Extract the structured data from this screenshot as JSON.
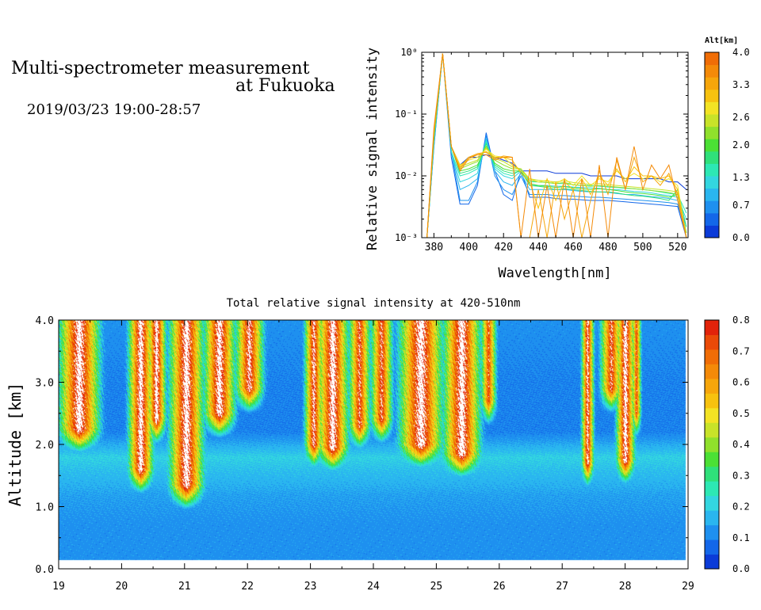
{
  "header": {
    "title_line1": "Multi-spectrometer measurement",
    "title_line2": "at Fukuoka",
    "datetime": "2019/03/23 19:00-28:57"
  },
  "chart_data": [
    {
      "type": "line",
      "xlabel": "Wavelength[nm]",
      "ylabel": "Relative signal intensity",
      "xlim": [
        373,
        526
      ],
      "ylim": [
        0.001,
        1
      ],
      "yscale": "log",
      "x_ticks": [
        380,
        400,
        420,
        440,
        460,
        480,
        500,
        520
      ],
      "y_ticks": [
        {
          "value": 1,
          "label": "10⁰"
        },
        {
          "value": 0.1,
          "label": "10⁻¹"
        },
        {
          "value": 0.01,
          "label": "10⁻²"
        },
        {
          "value": 0.001,
          "label": "10⁻³"
        }
      ],
      "colorbar": {
        "title": "Alt[km]",
        "min": 0.0,
        "max": 4.0,
        "tick_values": [
          0.0,
          0.7,
          1.3,
          2.0,
          2.6,
          3.3,
          4.0
        ],
        "tick_labels": [
          "0.0",
          "0.7",
          "1.3",
          "2.0",
          "2.6",
          "3.3",
          "4.0"
        ],
        "colors": [
          "#0b3bd8",
          "#1367e9",
          "#1e90ef",
          "#2ab6ef",
          "#33d6e0",
          "#2de8b4",
          "#2fe07a",
          "#4be035",
          "#90e02c",
          "#c8e329",
          "#f3e324",
          "#f7c20f",
          "#f6a60b",
          "#f48a08",
          "#f06d06"
        ]
      },
      "x": [
        374,
        376,
        380,
        385,
        390,
        395,
        400,
        405,
        410,
        415,
        420,
        425,
        430,
        435,
        440,
        445,
        450,
        455,
        460,
        465,
        470,
        475,
        480,
        485,
        490,
        495,
        500,
        505,
        510,
        515,
        520,
        525
      ],
      "series": [
        {
          "altitude_km": 0.1,
          "color": "#0b3bd8",
          "values": [
            0.001,
            0.001,
            0.04,
            0.95,
            0.03,
            0.015,
            0.02,
            0.02,
            0.022,
            0.02,
            0.018,
            0.016,
            0.012,
            0.012,
            0.012,
            0.012,
            0.011,
            0.011,
            0.011,
            0.011,
            0.01,
            0.01,
            0.01,
            0.01,
            0.009,
            0.009,
            0.009,
            0.009,
            0.009,
            0.008,
            0.008,
            0.006
          ]
        },
        {
          "altitude_km": 0.3,
          "color": "#1367e9",
          "values": [
            0.001,
            0.001,
            0.03,
            0.95,
            0.02,
            0.0035,
            0.0035,
            0.007,
            0.05,
            0.012,
            0.005,
            0.004,
            0.012,
            0.0045,
            0.0045,
            0.0045,
            0.0043,
            0.0042,
            0.0042,
            0.0041,
            0.004,
            0.004,
            0.004,
            0.0039,
            0.0038,
            0.0037,
            0.0036,
            0.0035,
            0.0034,
            0.0033,
            0.0032,
            0.001
          ]
        },
        {
          "altitude_km": 0.6,
          "color": "#1e90ef",
          "values": [
            0.001,
            0.001,
            0.03,
            0.95,
            0.025,
            0.004,
            0.004,
            0.008,
            0.045,
            0.01,
            0.006,
            0.005,
            0.01,
            0.005,
            0.005,
            0.005,
            0.0048,
            0.0048,
            0.0047,
            0.0046,
            0.0045,
            0.0045,
            0.0044,
            0.0043,
            0.0042,
            0.0041,
            0.004,
            0.0039,
            0.0038,
            0.0037,
            0.0035,
            0.0012
          ]
        },
        {
          "altitude_km": 0.9,
          "color": "#2ab6ef",
          "values": [
            0.001,
            0.001,
            0.035,
            0.95,
            0.025,
            0.006,
            0.007,
            0.009,
            0.04,
            0.012,
            0.008,
            0.007,
            0.011,
            0.006,
            0.006,
            0.006,
            0.006,
            0.006,
            0.0058,
            0.0056,
            0.0055,
            0.0055,
            0.0054,
            0.0052,
            0.005,
            0.005,
            0.0048,
            0.0046,
            0.0045,
            0.0043,
            0.004,
            0.0015
          ]
        },
        {
          "altitude_km": 1.2,
          "color": "#33d6e0",
          "values": [
            0.001,
            0.001,
            0.035,
            0.95,
            0.025,
            0.008,
            0.009,
            0.011,
            0.038,
            0.013,
            0.01,
            0.009,
            0.012,
            0.007,
            0.007,
            0.007,
            0.0068,
            0.0068,
            0.0066,
            0.0065,
            0.0064,
            0.0063,
            0.006,
            0.006,
            0.0058,
            0.0056,
            0.0055,
            0.0053,
            0.005,
            0.0048,
            0.0045,
            0.002
          ]
        },
        {
          "altitude_km": 1.5,
          "color": "#2de8b4",
          "values": [
            0.001,
            0.001,
            0.04,
            0.95,
            0.025,
            0.01,
            0.011,
            0.013,
            0.035,
            0.014,
            0.011,
            0.01,
            0.013,
            0.008,
            0.008,
            0.0078,
            0.0075,
            0.0075,
            0.0072,
            0.007,
            0.007,
            0.0068,
            0.0066,
            0.0065,
            0.0063,
            0.0062,
            0.006,
            0.0058,
            0.0055,
            0.0052,
            0.005,
            0.0025
          ]
        },
        {
          "altitude_km": 1.8,
          "color": "#2fe07a",
          "values": [
            0.001,
            0.001,
            0.04,
            0.95,
            0.03,
            0.011,
            0.012,
            0.014,
            0.033,
            0.015,
            0.012,
            0.011,
            0.012,
            0.007,
            0.0068,
            0.0065,
            0.006,
            0.0062,
            0.006,
            0.0058,
            0.0056,
            0.0055,
            0.0055,
            0.0053,
            0.005,
            0.0048,
            0.0047,
            0.0045,
            0.0043,
            0.004,
            0.006,
            0.0015
          ]
        },
        {
          "altitude_km": 2.1,
          "color": "#4be035",
          "values": [
            0.001,
            0.001,
            0.045,
            0.95,
            0.03,
            0.012,
            0.013,
            0.015,
            0.03,
            0.016,
            0.013,
            0.012,
            0.012,
            0.0075,
            0.007,
            0.0068,
            0.0065,
            0.0067,
            0.0064,
            0.0062,
            0.006,
            0.0062,
            0.006,
            0.0058,
            0.0055,
            0.0053,
            0.0052,
            0.005,
            0.0048,
            0.0045,
            0.005,
            0.0012
          ]
        },
        {
          "altitude_km": 2.4,
          "color": "#90e02c",
          "values": [
            0.001,
            0.001,
            0.045,
            0.95,
            0.03,
            0.013,
            0.015,
            0.017,
            0.03,
            0.018,
            0.015,
            0.013,
            0.013,
            0.0085,
            0.008,
            0.0078,
            0.0075,
            0.0078,
            0.0072,
            0.007,
            0.0068,
            0.007,
            0.0068,
            0.0066,
            0.0064,
            0.0062,
            0.006,
            0.0058,
            0.0056,
            0.0054,
            0.005,
            0.0012
          ]
        },
        {
          "altitude_km": 2.7,
          "color": "#c8e329",
          "values": [
            0.001,
            0.001,
            0.05,
            0.95,
            0.03,
            0.014,
            0.016,
            0.018,
            0.028,
            0.019,
            0.017,
            0.014,
            0.013,
            0.009,
            0.0085,
            0.0082,
            0.008,
            0.0083,
            0.0078,
            0.0075,
            0.0073,
            0.0075,
            0.0072,
            0.007,
            0.0068,
            0.0066,
            0.0064,
            0.0062,
            0.006,
            0.0058,
            0.0055,
            0.001
          ]
        },
        {
          "altitude_km": 3.0,
          "color": "#f3e324",
          "values": [
            0.001,
            0.001,
            0.05,
            0.95,
            0.03,
            0.015,
            0.018,
            0.02,
            0.027,
            0.021,
            0.02,
            0.015,
            0.012,
            0.009,
            0.008,
            0.0085,
            0.0075,
            0.009,
            0.007,
            0.01,
            0.007,
            0.009,
            0.008,
            0.012,
            0.009,
            0.011,
            0.009,
            0.01,
            0.008,
            0.009,
            0.007,
            0.001
          ]
        },
        {
          "altitude_km": 3.3,
          "color": "#f7c20f",
          "values": [
            0.001,
            0.001,
            0.05,
            0.95,
            0.03,
            0.014,
            0.02,
            0.022,
            0.025,
            0.02,
            0.02,
            0.018,
            0.011,
            0.008,
            0.003,
            0.009,
            0.004,
            0.008,
            0.006,
            0.009,
            0.005,
            0.01,
            0.007,
            0.013,
            0.008,
            0.014,
            0.01,
            0.01,
            0.009,
            0.01,
            0.006,
            0.001
          ]
        },
        {
          "altitude_km": 3.6,
          "color": "#f6a60b",
          "values": [
            0.001,
            0.001,
            0.05,
            0.95,
            0.03,
            0.013,
            0.02,
            0.023,
            0.024,
            0.019,
            0.021,
            0.02,
            0.001,
            0.001,
            0.006,
            0.001,
            0.008,
            0.002,
            0.006,
            0.001,
            0.004,
            0.012,
            0.005,
            0.018,
            0.006,
            0.02,
            0.008,
            0.01,
            0.007,
            0.011,
            0.005,
            0.001
          ]
        },
        {
          "altitude_km": 3.9,
          "color": "#f48a08",
          "values": [
            0.001,
            0.001,
            0.06,
            0.95,
            0.03,
            0.012,
            0.019,
            0.022,
            0.022,
            0.018,
            0.02,
            0.02,
            0.001,
            0.013,
            0.001,
            0.007,
            0.001,
            0.009,
            0.001,
            0.009,
            0.001,
            0.015,
            0.001,
            0.02,
            0.006,
            0.03,
            0.006,
            0.015,
            0.009,
            0.015,
            0.004,
            0.001
          ]
        }
      ]
    },
    {
      "type": "heatmap",
      "title": "Total relative signal intensity at 420-510nm",
      "ylabel": "Altitude [km]",
      "xlabel": "",
      "xlim": [
        19,
        29
      ],
      "ylim": [
        0.0,
        4.0
      ],
      "x_ticks": [
        19,
        20,
        21,
        22,
        23,
        24,
        25,
        26,
        27,
        28,
        29
      ],
      "y_ticks": [
        0.0,
        1.0,
        2.0,
        3.0,
        4.0
      ],
      "y_tick_labels": [
        "0.0",
        "1.0",
        "2.0",
        "3.0",
        "4.0"
      ],
      "colorbar": {
        "min": 0.0,
        "max": 0.8,
        "tick_values": [
          0.0,
          0.1,
          0.2,
          0.3,
          0.4,
          0.5,
          0.6,
          0.7,
          0.8
        ],
        "tick_labels": [
          "0.0",
          "0.1",
          "0.2",
          "0.3",
          "0.4",
          "0.5",
          "0.6",
          "0.7",
          "0.8"
        ],
        "colors": [
          "#0b3bd8",
          "#1367e9",
          "#1e90ef",
          "#2ab6ef",
          "#33d6e0",
          "#2de8b4",
          "#2fe07a",
          "#4be035",
          "#90e02c",
          "#c8e329",
          "#f3e324",
          "#f7c20f",
          "#f6a60b",
          "#f48a08",
          "#f06d06",
          "#ea4a08",
          "#e2230a"
        ]
      },
      "data_extent": {
        "x_start": 19.0,
        "x_end": 28.95,
        "y_start": 0.15,
        "y_end": 4.0
      },
      "background_level": [
        {
          "alt_km": 0.15,
          "value": 0.12
        },
        {
          "alt_km": 0.7,
          "value": 0.12
        },
        {
          "alt_km": 1.2,
          "value": 0.14
        },
        {
          "alt_km": 1.8,
          "value": 0.2
        },
        {
          "alt_km": 2.2,
          "value": 0.1
        },
        {
          "alt_km": 3.0,
          "value": 0.1
        },
        {
          "alt_km": 4.0,
          "value": 0.12
        }
      ],
      "cloud_columns": [
        {
          "x0": 19.0,
          "x1": 19.65,
          "base_km": 2.15,
          "peak": 0.9
        },
        {
          "x0": 20.1,
          "x1": 20.5,
          "base_km": 1.5,
          "peak": 0.9
        },
        {
          "x0": 20.4,
          "x1": 20.7,
          "base_km": 2.3,
          "peak": 0.9
        },
        {
          "x0": 20.75,
          "x1": 21.3,
          "base_km": 1.25,
          "peak": 0.9
        },
        {
          "x0": 21.3,
          "x1": 21.8,
          "base_km": 2.4,
          "peak": 0.9
        },
        {
          "x0": 21.8,
          "x1": 22.25,
          "base_km": 2.8,
          "peak": 0.85
        },
        {
          "x0": 22.9,
          "x1": 23.2,
          "base_km": 1.9,
          "peak": 0.85
        },
        {
          "x0": 23.1,
          "x1": 23.6,
          "base_km": 1.85,
          "peak": 0.9
        },
        {
          "x0": 23.6,
          "x1": 23.95,
          "base_km": 2.2,
          "peak": 0.8
        },
        {
          "x0": 23.95,
          "x1": 24.3,
          "base_km": 2.3,
          "peak": 0.8
        },
        {
          "x0": 24.4,
          "x1": 25.1,
          "base_km": 1.9,
          "peak": 0.9
        },
        {
          "x0": 25.1,
          "x1": 25.7,
          "base_km": 1.75,
          "peak": 0.9
        },
        {
          "x0": 25.7,
          "x1": 25.95,
          "base_km": 2.6,
          "peak": 0.75
        },
        {
          "x0": 27.3,
          "x1": 27.5,
          "base_km": 1.6,
          "peak": 0.85
        },
        {
          "x0": 27.6,
          "x1": 27.95,
          "base_km": 2.8,
          "peak": 0.8
        },
        {
          "x0": 27.85,
          "x1": 28.15,
          "base_km": 1.65,
          "peak": 0.9
        },
        {
          "x0": 28.1,
          "x1": 28.25,
          "base_km": 2.4,
          "peak": 0.75
        }
      ]
    }
  ]
}
